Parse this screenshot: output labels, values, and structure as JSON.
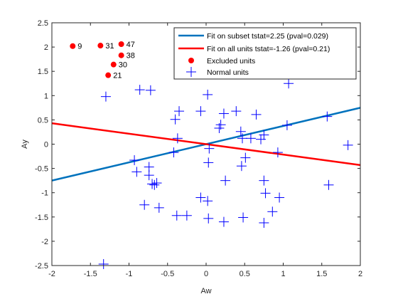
{
  "chart_data": {
    "type": "scatter",
    "xlabel": "Aw",
    "ylabel": "Ay",
    "xlim": [
      -2,
      2
    ],
    "ylim": [
      -2.5,
      2.5
    ],
    "xticks": [
      -2,
      -1.5,
      -1,
      -0.5,
      0,
      0.5,
      1,
      1.5,
      2
    ],
    "xtick_labels": [
      "-2",
      "-1.5",
      "-1",
      "-0.5",
      "0",
      "0.5",
      "1",
      "1.5",
      "2"
    ],
    "yticks": [
      -2.5,
      -2,
      -1.5,
      -1,
      -0.5,
      0,
      0.5,
      1,
      1.5,
      2,
      2.5
    ],
    "ytick_labels": [
      "-2.5",
      "-2",
      "-1.5",
      "-1",
      "-0.5",
      "0",
      "0.5",
      "1",
      "1.5",
      "2",
      "2.5"
    ],
    "grid": false,
    "legend_position": "top-right",
    "fit_lines": [
      {
        "name": "Fit on subset tstat=2.25 (pval=0.029)",
        "color": "#0072BD",
        "x": [
          -2,
          2
        ],
        "y": [
          -0.75,
          0.75
        ]
      },
      {
        "name": "Fit on all units tstat=-1.26 (pval=0.21)",
        "color": "#FF0000",
        "x": [
          -2,
          2
        ],
        "y": [
          0.43,
          -0.43
        ]
      }
    ],
    "excluded_units": {
      "name": "Excluded units",
      "color": "#FF0000",
      "points": [
        {
          "x": -1.73,
          "y": 2.02,
          "label": "9"
        },
        {
          "x": -1.37,
          "y": 2.03,
          "label": "31"
        },
        {
          "x": -1.1,
          "y": 2.06,
          "label": "47"
        },
        {
          "x": -1.1,
          "y": 1.83,
          "label": "38"
        },
        {
          "x": -1.2,
          "y": 1.64,
          "label": "30"
        },
        {
          "x": -1.27,
          "y": 1.42,
          "label": "21"
        }
      ]
    },
    "normal_units": {
      "name": "Normal units",
      "color": "#0000FF",
      "points": [
        {
          "x": -1.3,
          "y": 0.98
        },
        {
          "x": -0.86,
          "y": 1.12
        },
        {
          "x": -0.72,
          "y": 1.11
        },
        {
          "x": -1.33,
          "y": -2.47
        },
        {
          "x": -0.93,
          "y": -0.33
        },
        {
          "x": -0.9,
          "y": -0.57
        },
        {
          "x": -0.8,
          "y": -1.25
        },
        {
          "x": -0.74,
          "y": -0.47
        },
        {
          "x": -0.74,
          "y": -0.64
        },
        {
          "x": -0.7,
          "y": -0.82
        },
        {
          "x": -0.67,
          "y": -0.84
        },
        {
          "x": -0.64,
          "y": -0.8
        },
        {
          "x": -0.61,
          "y": -1.31
        },
        {
          "x": -0.42,
          "y": -0.17
        },
        {
          "x": -0.4,
          "y": 0.51
        },
        {
          "x": -0.37,
          "y": 0.12
        },
        {
          "x": -0.35,
          "y": 0.68
        },
        {
          "x": -0.38,
          "y": -1.47
        },
        {
          "x": -0.25,
          "y": -1.47
        },
        {
          "x": -0.07,
          "y": 0.68
        },
        {
          "x": -0.07,
          "y": -1.1
        },
        {
          "x": 0.02,
          "y": 1.02
        },
        {
          "x": 0.04,
          "y": -0.09
        },
        {
          "x": 0.03,
          "y": -0.38
        },
        {
          "x": 0.02,
          "y": -1.17
        },
        {
          "x": 0.03,
          "y": -1.53
        },
        {
          "x": 0.17,
          "y": 0.33
        },
        {
          "x": 0.19,
          "y": 0.4
        },
        {
          "x": 0.23,
          "y": 0.63
        },
        {
          "x": 0.25,
          "y": -0.75
        },
        {
          "x": 0.23,
          "y": -1.6
        },
        {
          "x": 0.39,
          "y": 0.68
        },
        {
          "x": 0.45,
          "y": 0.26
        },
        {
          "x": 0.47,
          "y": 0.12
        },
        {
          "x": 0.46,
          "y": -0.45
        },
        {
          "x": 0.51,
          "y": -0.28
        },
        {
          "x": 0.48,
          "y": -1.51
        },
        {
          "x": 0.58,
          "y": 0.12
        },
        {
          "x": 0.65,
          "y": 0.61
        },
        {
          "x": 0.71,
          "y": 0.1
        },
        {
          "x": 0.75,
          "y": 0.19
        },
        {
          "x": 0.75,
          "y": -0.75
        },
        {
          "x": 0.77,
          "y": -1.01
        },
        {
          "x": 0.75,
          "y": -1.62
        },
        {
          "x": 0.86,
          "y": -1.39
        },
        {
          "x": 0.93,
          "y": -0.17
        },
        {
          "x": 0.95,
          "y": -1.1
        },
        {
          "x": 1.05,
          "y": 0.39
        },
        {
          "x": 1.07,
          "y": 1.25
        },
        {
          "x": 1.57,
          "y": 0.57
        },
        {
          "x": 1.59,
          "y": -0.84
        },
        {
          "x": 1.84,
          "y": -0.02
        }
      ]
    }
  }
}
